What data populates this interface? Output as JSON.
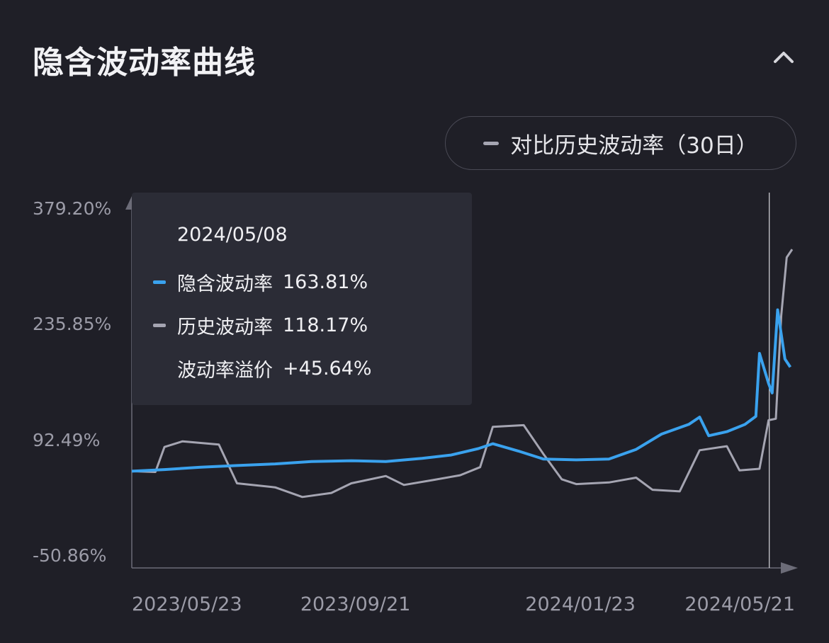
{
  "header": {
    "title": "隐含波动率曲线"
  },
  "toggle": {
    "label": "对比历史波动率（30日）",
    "icon_color": "#a5a5b2"
  },
  "tooltip": {
    "date": "2024/05/08",
    "rows": [
      {
        "label": "隐含波动率",
        "value": "163.81%",
        "color": "#3aa2ee"
      },
      {
        "label": "历史波动率",
        "value": "118.17%",
        "color": "#a5a5b2"
      },
      {
        "label": "波动率溢价",
        "value": "+45.64%",
        "color": ""
      }
    ]
  },
  "chart_data": {
    "type": "line",
    "y_tick_labels": [
      "379.20%",
      "235.85%",
      "92.49%",
      "-50.86%"
    ],
    "y_tick_values": [
      379.2,
      235.85,
      92.49,
      -50.86
    ],
    "ylim": [
      -50.86,
      379.2
    ],
    "x_tick_labels": [
      "2023/05/23",
      "2023/09/21",
      "2024/01/23",
      "2024/05/21"
    ],
    "xlim": [
      "2023/05/23",
      "2024/05/21"
    ],
    "crosshair_x": "2024/05/08",
    "series": [
      {
        "name": "隐含波动率",
        "color": "#3aa2ee",
        "points": [
          [
            "2023/05/23",
            55
          ],
          [
            "2023/06/10",
            57
          ],
          [
            "2023/06/30",
            60
          ],
          [
            "2023/07/20",
            62
          ],
          [
            "2023/08/10",
            64
          ],
          [
            "2023/08/30",
            67
          ],
          [
            "2023/09/21",
            68
          ],
          [
            "2023/10/10",
            67
          ],
          [
            "2023/10/30",
            71
          ],
          [
            "2023/11/15",
            75
          ],
          [
            "2023/11/30",
            83
          ],
          [
            "2023/12/08",
            89
          ],
          [
            "2023/12/22",
            80
          ],
          [
            "2024/01/05",
            70
          ],
          [
            "2024/01/23",
            69
          ],
          [
            "2024/02/10",
            70
          ],
          [
            "2024/02/25",
            82
          ],
          [
            "2024/03/10",
            101
          ],
          [
            "2024/03/25",
            113
          ],
          [
            "2024/03/31",
            122
          ],
          [
            "2024/04/05",
            99
          ],
          [
            "2024/04/15",
            104
          ],
          [
            "2024/04/25",
            113
          ],
          [
            "2024/05/01",
            123
          ],
          [
            "2024/05/03",
            201
          ],
          [
            "2024/05/08",
            163.81
          ],
          [
            "2024/05/10",
            152
          ],
          [
            "2024/05/13",
            255
          ],
          [
            "2024/05/17",
            194
          ],
          [
            "2024/05/20",
            184
          ]
        ]
      },
      {
        "name": "历史波动率",
        "color": "#a5a5b2",
        "points": [
          [
            "2023/05/23",
            55
          ],
          [
            "2023/06/05",
            54
          ],
          [
            "2023/06/10",
            85
          ],
          [
            "2023/06/20",
            92
          ],
          [
            "2023/07/10",
            88
          ],
          [
            "2023/07/20",
            40
          ],
          [
            "2023/08/10",
            35
          ],
          [
            "2023/08/25",
            23
          ],
          [
            "2023/09/10",
            28
          ],
          [
            "2023/09/21",
            40
          ],
          [
            "2023/10/10",
            49
          ],
          [
            "2023/10/20",
            38
          ],
          [
            "2023/11/05",
            44
          ],
          [
            "2023/11/20",
            50
          ],
          [
            "2023/12/01",
            60
          ],
          [
            "2023/12/08",
            110
          ],
          [
            "2023/12/25",
            112
          ],
          [
            "2024/01/05",
            76
          ],
          [
            "2024/01/15",
            45
          ],
          [
            "2024/01/23",
            39
          ],
          [
            "2024/02/10",
            41
          ],
          [
            "2024/02/25",
            47
          ],
          [
            "2024/03/05",
            32
          ],
          [
            "2024/03/20",
            30
          ],
          [
            "2024/03/31",
            81
          ],
          [
            "2024/04/15",
            86
          ],
          [
            "2024/04/22",
            56
          ],
          [
            "2024/05/03",
            58
          ],
          [
            "2024/05/08",
            118.17
          ],
          [
            "2024/05/12",
            120
          ],
          [
            "2024/05/15",
            248
          ],
          [
            "2024/05/18",
            320
          ],
          [
            "2024/05/21",
            330
          ]
        ]
      }
    ]
  }
}
